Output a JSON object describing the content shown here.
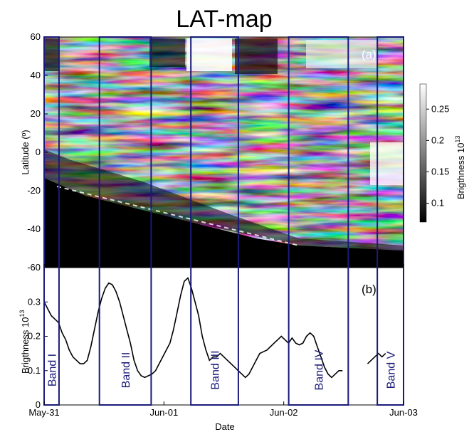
{
  "figure": {
    "title": "LAT-map",
    "xlabel": "Date",
    "date_ticks": [
      "May-31",
      "Jun-01",
      "Jun-02",
      "Jun-03"
    ],
    "band_color": "#1a1a7a",
    "line_color": "#000000"
  },
  "chart_data": [
    {
      "type": "heatmap",
      "panel_label": "(a)",
      "title": "LAT-map",
      "xlabel": "",
      "ylabel": "Latitude (º)",
      "x_range": [
        "May-31",
        "Jun-03"
      ],
      "ylim": [
        -60,
        60
      ],
      "yticks": [
        -60,
        -40,
        -20,
        0,
        20,
        40,
        60
      ],
      "colorbar": {
        "label": "Brigthness 10",
        "exponent": "13",
        "ticks": [
          0.1,
          0.15,
          0.2,
          0.25
        ],
        "tick_labels": [
          "0.1",
          "0.15",
          "0.2",
          "0.25"
        ],
        "range": [
          0.07,
          0.29
        ],
        "colormap": "gray"
      },
      "grid": false
    },
    {
      "type": "line",
      "panel_label": "(b)",
      "xlabel": "Date",
      "ylabel": "Brigthness 10",
      "ylabel_exponent": "13",
      "x_ticks": [
        "May-31",
        "Jun-01",
        "Jun-02",
        "Jun-03"
      ],
      "x_days": [
        0.0,
        0.03,
        0.06,
        0.09,
        0.12,
        0.15,
        0.18,
        0.21,
        0.24,
        0.27,
        0.3,
        0.33,
        0.36,
        0.39,
        0.42,
        0.45,
        0.48,
        0.51,
        0.54,
        0.57,
        0.6,
        0.63,
        0.66,
        0.69,
        0.72,
        0.75,
        0.78,
        0.81,
        0.84,
        0.87,
        0.9,
        0.93,
        0.96,
        0.99,
        1.02,
        1.05,
        1.08,
        1.11,
        1.14,
        1.17,
        1.2,
        1.23,
        1.26,
        1.29,
        1.32,
        1.35,
        1.38,
        1.41,
        1.44,
        1.47,
        1.5,
        1.53,
        1.56,
        1.59,
        1.62,
        1.65,
        1.68,
        1.71,
        1.74,
        1.77,
        1.8,
        1.83,
        1.86,
        1.89,
        1.92,
        1.95,
        1.98,
        2.01,
        2.04,
        2.07,
        2.1,
        2.13,
        2.16,
        2.19,
        2.22,
        2.25,
        2.28,
        2.31,
        2.34,
        2.37,
        2.4,
        2.43,
        2.46,
        2.49,
        2.52,
        2.55,
        2.58,
        2.61,
        2.64,
        2.67,
        2.7,
        2.73,
        2.76,
        2.79,
        2.82,
        2.85
      ],
      "y": [
        0.3,
        0.28,
        0.26,
        0.25,
        0.24,
        0.21,
        0.19,
        0.16,
        0.14,
        0.13,
        0.12,
        0.12,
        0.13,
        0.17,
        0.22,
        0.27,
        0.31,
        0.34,
        0.355,
        0.35,
        0.33,
        0.3,
        0.26,
        0.22,
        0.18,
        0.13,
        0.1,
        0.085,
        0.08,
        0.085,
        0.09,
        0.1,
        0.12,
        0.14,
        0.16,
        0.18,
        0.22,
        0.27,
        0.32,
        0.36,
        0.37,
        0.34,
        0.3,
        0.26,
        0.2,
        0.16,
        0.13,
        0.14,
        0.14,
        0.15,
        0.14,
        0.13,
        0.12,
        0.11,
        0.1,
        0.09,
        0.08,
        0.09,
        0.11,
        0.13,
        0.15,
        0.155,
        0.16,
        0.17,
        0.18,
        0.19,
        0.2,
        0.19,
        0.18,
        0.195,
        0.18,
        0.175,
        0.18,
        0.2,
        0.21,
        0.2,
        0.17,
        0.14,
        0.11,
        0.09,
        0.08,
        0.09,
        0.1,
        0.1,
        null,
        null,
        null,
        null,
        null,
        null,
        0.12,
        0.13,
        0.14,
        0.15,
        0.14,
        0.15
      ],
      "ylim": [
        0,
        0.4
      ],
      "yticks": [
        0,
        0.1,
        0.2,
        0.3
      ],
      "ytick_labels": [
        "0",
        "0.1",
        "0.2",
        "0.3"
      ],
      "grid": false
    }
  ],
  "bands": [
    {
      "label": "Band I",
      "start_day": 0.0,
      "end_day": 0.21
    },
    {
      "label": "Band II",
      "start_day": 0.78,
      "end_day": 1.51
    },
    {
      "label": "Band III",
      "start_day": 2.07,
      "end_day": 2.74
    },
    {
      "label": "Band IV",
      "start_day": 3.45,
      "end_day": 4.29
    },
    {
      "label": "Band V",
      "start_day": 4.7,
      "end_day": 5.07
    }
  ]
}
